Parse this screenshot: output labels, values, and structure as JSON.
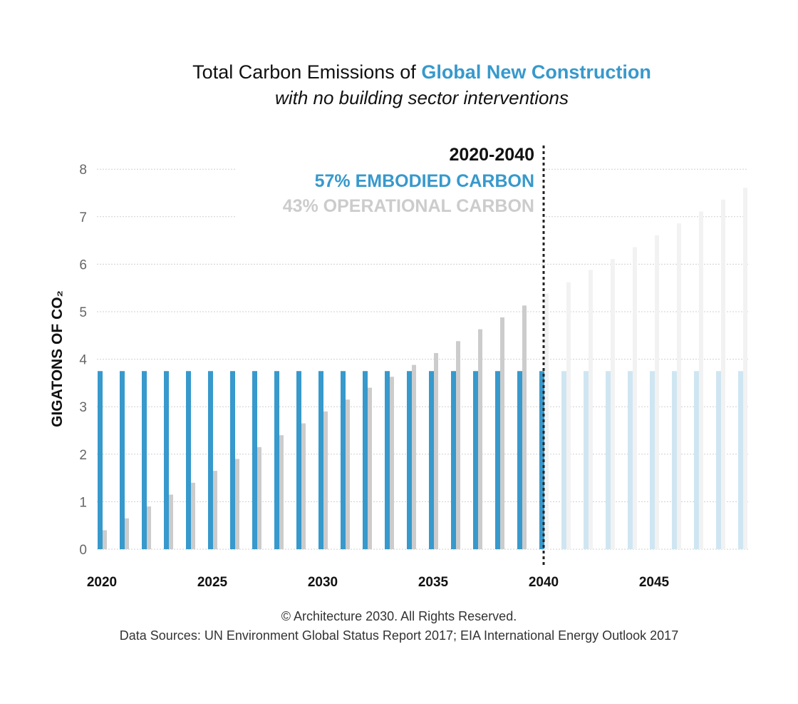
{
  "chart_data": {
    "type": "bar",
    "title_plain": "Total Carbon Emissions of ",
    "title_highlight": "Global New Construction",
    "subtitle": "with no building sector interventions",
    "ylabel": "GIGATONS OF CO₂",
    "xlabel": "",
    "ylim": [
      0,
      8
    ],
    "yticks": [
      "0",
      "1",
      "2",
      "3",
      "4",
      "5",
      "6",
      "7",
      "8"
    ],
    "xticks": [
      "2020",
      "2025",
      "2030",
      "2035",
      "2040",
      "2045"
    ],
    "grid": true,
    "x": [
      2020,
      2021,
      2022,
      2023,
      2024,
      2025,
      2026,
      2027,
      2028,
      2029,
      2030,
      2031,
      2032,
      2033,
      2034,
      2035,
      2036,
      2037,
      2038,
      2039,
      2040,
      2041,
      2042,
      2043,
      2044,
      2045,
      2046,
      2047,
      2048,
      2049
    ],
    "series": [
      {
        "name": "EMBODIED CARBON",
        "color": "#3799cc",
        "faded_color": "#cfe6f2",
        "values": [
          3.75,
          3.75,
          3.75,
          3.75,
          3.75,
          3.75,
          3.75,
          3.75,
          3.75,
          3.75,
          3.75,
          3.75,
          3.75,
          3.75,
          3.75,
          3.75,
          3.75,
          3.75,
          3.75,
          3.75,
          3.75,
          3.75,
          3.75,
          3.75,
          3.75,
          3.75,
          3.75,
          3.75,
          3.75,
          3.75
        ]
      },
      {
        "name": "OPERATIONAL CARBON",
        "color": "#cccccc",
        "faded_color": "#f2f2f2",
        "values": [
          0.4,
          0.65,
          0.9,
          1.15,
          1.4,
          1.65,
          1.9,
          2.15,
          2.4,
          2.65,
          2.9,
          3.15,
          3.4,
          3.63,
          3.88,
          4.13,
          4.38,
          4.63,
          4.88,
          5.13,
          5.38,
          5.62,
          5.88,
          6.11,
          6.36,
          6.61,
          6.86,
          7.11,
          7.36,
          7.61
        ]
      }
    ],
    "divider_year": 2040,
    "annotation": {
      "period": "2020-2040",
      "embodied": "57% EMBODIED CARBON",
      "operational": "43% OPERATIONAL CARBON"
    }
  },
  "footer": {
    "copyright": "© Architecture 2030. All Rights Reserved.",
    "sources": "Data Sources: UN Environment Global Status Report 2017; EIA International Energy Outlook 2017"
  }
}
